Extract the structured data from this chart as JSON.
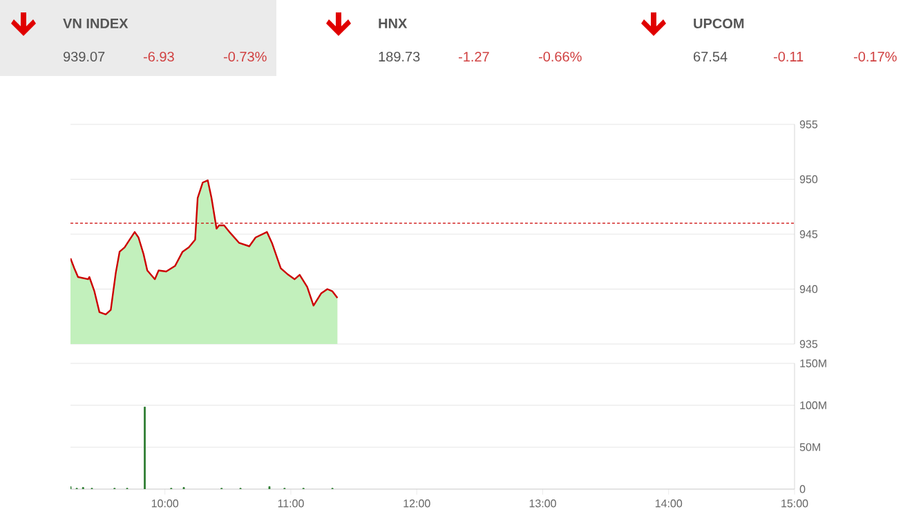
{
  "chart_data": [
    {
      "type": "other",
      "annotations": [
        "VN INDEX",
        "939.07",
        "-6.93",
        "-0.73%",
        "HNX",
        "189.73",
        "-1.27",
        "-0.66%",
        "UPCOM",
        "67.54",
        "-0.11",
        "-0.17%"
      ]
    },
    {
      "type": "area",
      "xlim": [
        9.25,
        15
      ],
      "ylim": [
        935,
        955
      ],
      "yticks": [
        935,
        940,
        945,
        950,
        955
      ],
      "tick_labels": "y",
      "grid": "y",
      "series": [
        {
          "type": "area",
          "color": "#c2f0bc",
          "x": [
            9.25,
            9.28,
            9.31,
            9.39,
            9.4,
            9.44,
            9.48,
            9.53,
            9.57,
            9.61,
            9.64,
            9.68,
            9.72,
            9.76,
            9.79,
            9.83,
            9.86,
            9.92,
            9.95,
            10.01,
            10.08,
            10.14,
            10.19,
            10.24,
            10.26,
            10.3,
            10.34,
            10.37,
            10.41,
            10.43,
            10.47,
            10.52,
            10.59,
            10.67,
            10.72,
            10.81,
            10.85,
            10.92,
            10.98,
            11.03,
            11.07,
            11.13,
            11.18,
            11.24,
            11.29,
            11.33,
            11.37
          ],
          "values": [
            942.8,
            941.9,
            941.1,
            940.9,
            941.1,
            939.8,
            937.9,
            937.7,
            938.1,
            941.5,
            943.4,
            943.8,
            944.5,
            945.2,
            944.7,
            943.2,
            941.7,
            940.9,
            941.7,
            941.6,
            942.1,
            943.4,
            943.8,
            944.5,
            948.3,
            949.7,
            949.9,
            948.3,
            945.5,
            945.8,
            945.8,
            945.1,
            944.2,
            943.9,
            944.7,
            945.2,
            944.2,
            941.9,
            941.3,
            940.9,
            941.3,
            940.2,
            938.5,
            939.6,
            940.0,
            939.8,
            939.2
          ]
        },
        {
          "type": "line",
          "color": "#cc0000",
          "x": [
            9.25,
            9.28,
            9.31,
            9.39,
            9.4,
            9.44,
            9.48,
            9.53,
            9.57,
            9.61,
            9.64,
            9.68,
            9.72,
            9.76,
            9.79,
            9.83,
            9.86,
            9.92,
            9.95,
            10.01,
            10.08,
            10.14,
            10.19,
            10.24,
            10.26,
            10.3,
            10.34,
            10.37,
            10.41,
            10.43,
            10.47,
            10.52,
            10.59,
            10.67,
            10.72,
            10.81,
            10.85,
            10.92,
            10.98,
            11.03,
            11.07,
            11.13,
            11.18,
            11.24,
            11.29,
            11.33,
            11.37
          ],
          "values": [
            942.8,
            941.9,
            941.1,
            940.9,
            941.1,
            939.8,
            937.9,
            937.7,
            938.1,
            941.5,
            943.4,
            943.8,
            944.5,
            945.2,
            944.7,
            943.2,
            941.7,
            940.9,
            941.7,
            941.6,
            942.1,
            943.4,
            943.8,
            944.5,
            948.3,
            949.7,
            949.9,
            948.3,
            945.5,
            945.8,
            945.8,
            945.1,
            944.2,
            943.9,
            944.7,
            945.2,
            944.2,
            941.9,
            941.3,
            940.9,
            941.3,
            940.2,
            938.5,
            939.6,
            940.0,
            939.8,
            939.2
          ]
        }
      ],
      "ref_lines": [
        {
          "axis": "y",
          "value": 946,
          "color": "#cc0000",
          "line_style": "dashed"
        }
      ]
    },
    {
      "type": "bar",
      "color": "#2e7d32",
      "xlim": [
        9.25,
        15
      ],
      "ylim": [
        0,
        150
      ],
      "grid": "y",
      "yticks": [
        0,
        {
          "value": 50,
          "label": "50M"
        },
        {
          "value": 100,
          "label": "100M"
        },
        {
          "value": 150,
          "label": "150M"
        }
      ],
      "xticks": [
        {
          "value": 10,
          "label": "10:00"
        },
        {
          "value": 11,
          "label": "11:00"
        },
        {
          "value": 12,
          "label": "12:00"
        },
        {
          "value": 13,
          "label": "13:00"
        },
        {
          "value": 14,
          "label": "14:00"
        },
        {
          "value": 15,
          "label": "15:00"
        }
      ],
      "x": [
        9.25,
        9.3,
        9.35,
        9.42,
        9.5,
        9.6,
        9.7,
        9.84,
        9.95,
        10.05,
        10.15,
        10.3,
        10.45,
        10.6,
        10.83,
        10.95,
        11.1,
        11.33
      ],
      "values": [
        3,
        1,
        2,
        1,
        null,
        1,
        1,
        98,
        null,
        1,
        2,
        null,
        1,
        1,
        3,
        1,
        1,
        1
      ]
    }
  ]
}
